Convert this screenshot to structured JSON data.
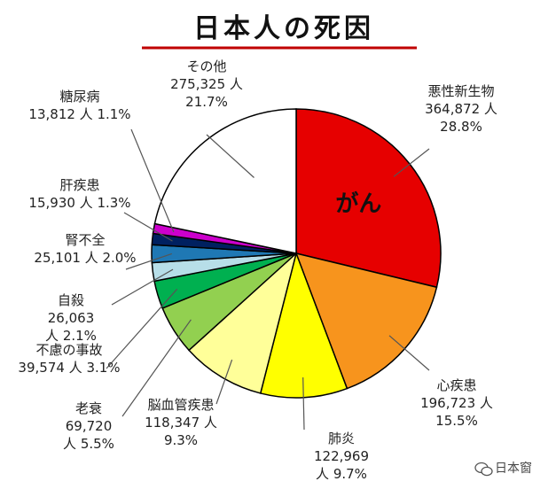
{
  "chart_data": {
    "type": "pie",
    "title": "日本人の死因",
    "slices": [
      {
        "label": "悪性新生物",
        "value": 364872,
        "count_text": "364,872 人",
        "percent_text": "28.8%",
        "color": "#e60000",
        "inner_label": "がん"
      },
      {
        "label": "心疾患",
        "value": 196723,
        "count_text": "196,723 人",
        "percent_text": "15.5%",
        "color": "#f7941d"
      },
      {
        "label": "肺炎",
        "value": 122969,
        "count_text": "122,969",
        "percent_text": "人 9.7%",
        "color": "#ffff00"
      },
      {
        "label": "脳血管疾患",
        "value": 118347,
        "count_text": "118,347 人",
        "percent_text": "9.3%",
        "color": "#ffff99"
      },
      {
        "label": "老衰",
        "value": 69720,
        "count_text": "69,720",
        "percent_text": "人 5.5%",
        "color": "#92d050"
      },
      {
        "label": "不慮の事故",
        "value": 39574,
        "count_text": "39,574 人 3.1%",
        "percent_text": "",
        "color": "#00b050"
      },
      {
        "label": "自殺",
        "value": 26063,
        "count_text": "26,063",
        "percent_text": "人 2.1%",
        "color": "#b7dee8"
      },
      {
        "label": "腎不全",
        "value": 25101,
        "count_text": "25,101 人 2.0%",
        "percent_text": "",
        "color": "#1f78b4"
      },
      {
        "label": "肝疾患",
        "value": 15930,
        "count_text": "15,930 人 1.3%",
        "percent_text": "",
        "color": "#002060"
      },
      {
        "label": "糖尿病",
        "value": 13812,
        "count_text": "13,812 人 1.1%",
        "percent_text": "",
        "color": "#cc00cc"
      },
      {
        "label": "その他",
        "value": 275325,
        "count_text": "275,325 人",
        "percent_text": "21.7%",
        "color": "#ffffff"
      }
    ]
  },
  "accent_colors": {
    "title_underline": "#c00000"
  },
  "watermark": {
    "text": "日本窗",
    "icon": "wechat-icon"
  }
}
